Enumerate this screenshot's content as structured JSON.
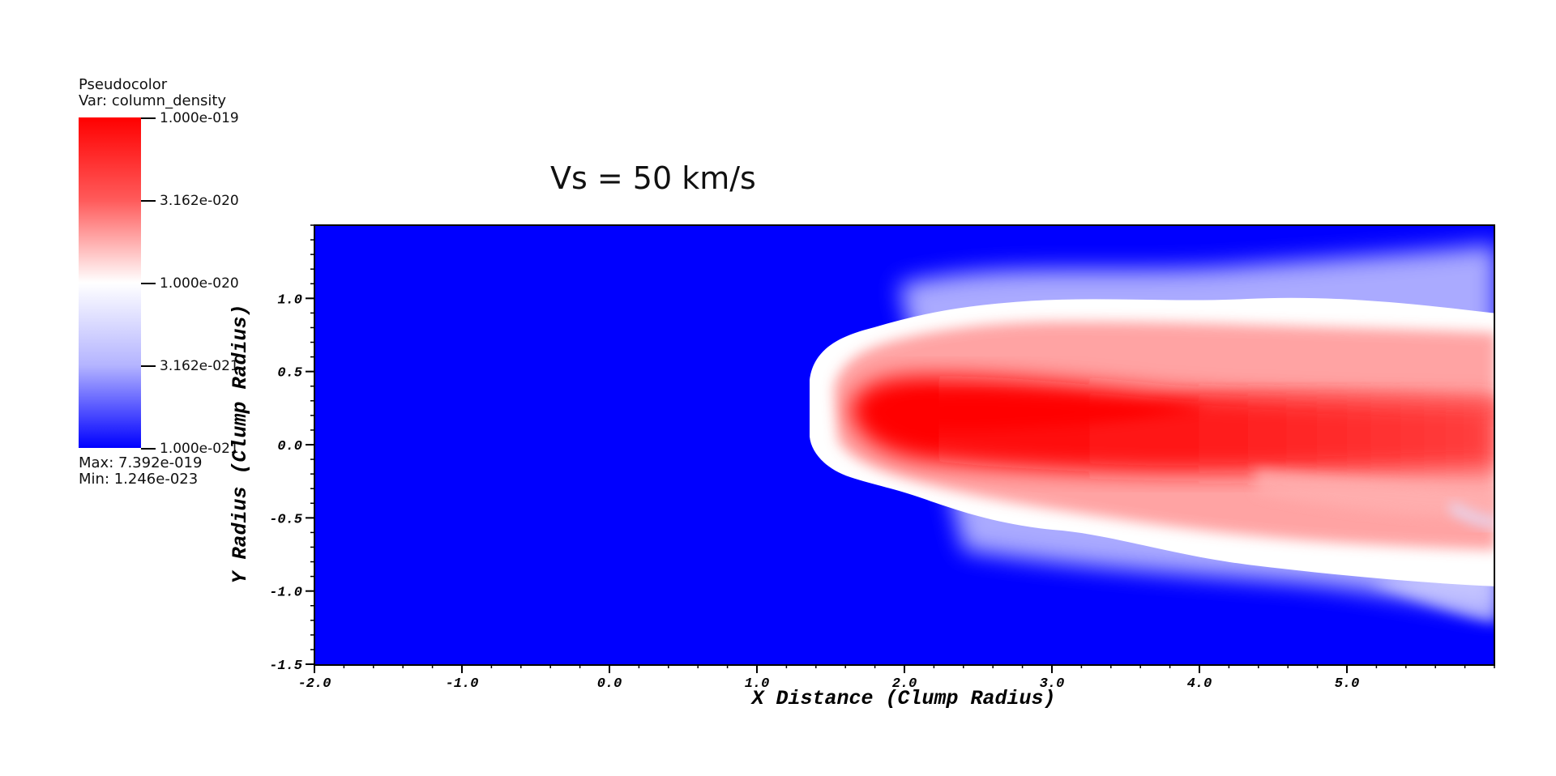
{
  "legend": {
    "title": "Pseudocolor",
    "var": "Var: column_density",
    "ticks": [
      "1.000e-019",
      "3.162e-020",
      "1.000e-020",
      "3.162e-021",
      "1.000e-021"
    ],
    "max": "Max:  7.392e-019",
    "min": "Min:  1.246e-023",
    "colors": {
      "high": "#ff0000",
      "mid": "#ffffff",
      "low": "#0000ff"
    },
    "scale": "log"
  },
  "chart_data": {
    "type": "heatmap",
    "title": "Vs = 50 km/s",
    "xlabel": "X Distance (Clump Radius)",
    "ylabel": "Y Radius (Clump Radius)",
    "xlim": [
      -2.0,
      6.0
    ],
    "ylim": [
      -1.5,
      1.5
    ],
    "xticks": [
      "-2.0",
      "-1.0",
      "0.0",
      "1.0",
      "2.0",
      "3.0",
      "4.0",
      "5.0"
    ],
    "yticks": [
      "1.0",
      "0.5",
      "0.0",
      "-0.5",
      "-1.0",
      "-1.5"
    ],
    "colormap": [
      "#0000ff",
      "#ffffff",
      "#ff0000"
    ],
    "grid": false
  }
}
